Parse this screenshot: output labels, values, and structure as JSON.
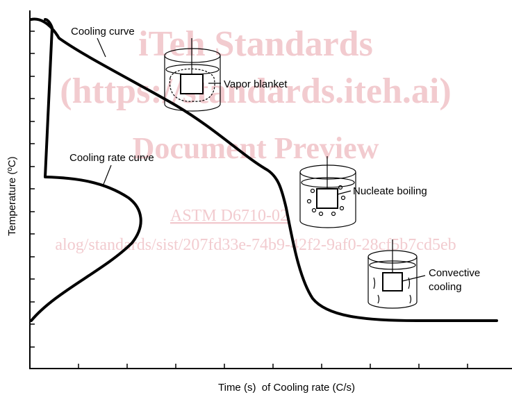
{
  "labels": {
    "cooling_curve": "Cooling curve",
    "vapor_blanket": "Vapor blanket",
    "cooling_rate_curve": "Cooling rate curve",
    "nucleate_boiling": "Nucleate boiling",
    "convective_1": "Convective",
    "convective_2": "cooling",
    "y_axis": "Temperature (ºC)",
    "x_axis": "Time (s)  of Cooling rate (C/s)"
  },
  "watermark": {
    "line1": "iTeh Standards",
    "line2": "(https://standards.iteh.ai)",
    "line3": "Document Preview",
    "line4": "ASTM D6710-02",
    "line5": "alog/standards/sist/207fd33e-74b9-42f2-9af0-28cf5b7cd5eb"
  }
}
